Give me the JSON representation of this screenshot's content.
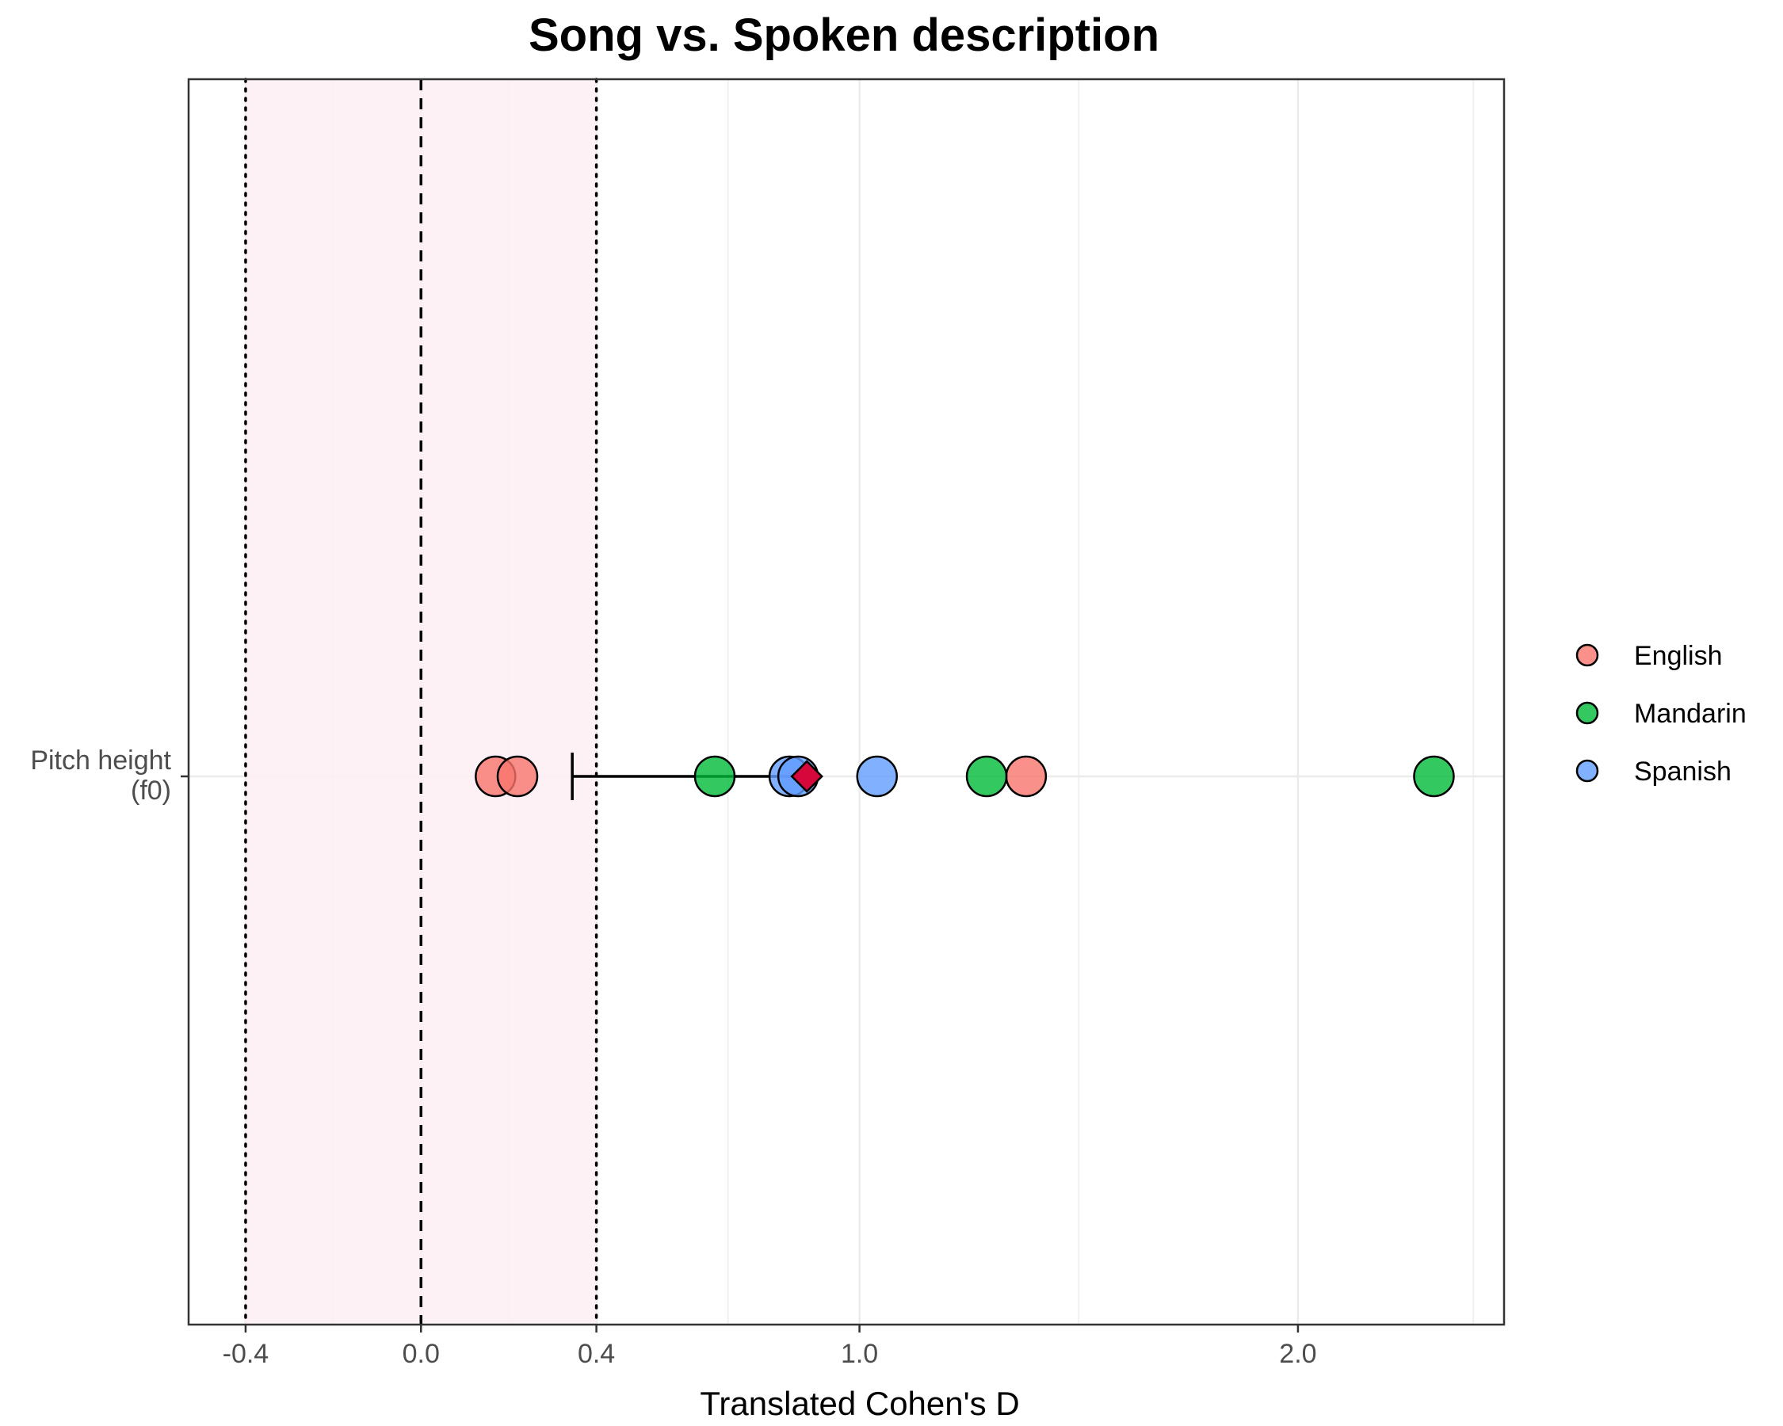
{
  "chart_data": {
    "type": "scatter",
    "title": "Song vs. Spoken description",
    "xlabel": "Translated Cohen's D",
    "ylabel": "",
    "xlim": [
      -0.53,
      2.47
    ],
    "x_ticks": [
      -0.4,
      0.0,
      0.4,
      1.0,
      2.0
    ],
    "x_tick_labels": [
      "-0.4",
      "0.0",
      "0.4",
      "1.0",
      "2.0"
    ],
    "categories": [
      "Pitch height\n(f0)"
    ],
    "category_label_lines": [
      "Pitch height",
      "(f0)"
    ],
    "grid": true,
    "legend_position": "right",
    "series": [
      {
        "name": "English",
        "color": "#F8766D",
        "values": [
          0.17,
          0.22,
          1.38
        ]
      },
      {
        "name": "Mandarin",
        "color": "#00BA38",
        "values": [
          0.67,
          1.29,
          2.31
        ]
      },
      {
        "name": "Spanish",
        "color": "#619CFF",
        "values": [
          0.84,
          0.86,
          1.04
        ]
      }
    ],
    "estimate": {
      "value": 0.88,
      "ci_low": 0.345,
      "ci_high": 0.88,
      "color": "#D6083B"
    },
    "reference_lines": {
      "zero": 0.0,
      "dotted": [
        -0.4,
        0.4
      ]
    },
    "shaded_region": {
      "from": -0.4,
      "to": 0.4,
      "color": "#FDEEF4"
    }
  }
}
